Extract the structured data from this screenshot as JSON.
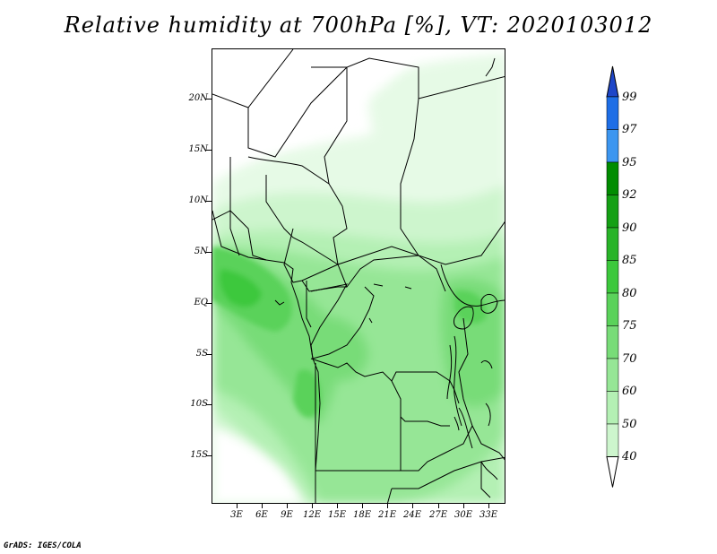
{
  "title": "Relative humidity at 700hPa [%], VT: 2020103012",
  "credit": "GrADS: IGES/COLA",
  "lat_labels": [
    "20N",
    "15N",
    "10N",
    "5N",
    "EQ",
    "5S",
    "10S",
    "15S"
  ],
  "lon_labels": [
    "3E",
    "6E",
    "9E",
    "12E",
    "15E",
    "18E",
    "21E",
    "24E",
    "27E",
    "30E",
    "33E"
  ],
  "colorbar": {
    "labels": [
      "99",
      "97",
      "95",
      "92",
      "90",
      "85",
      "80",
      "75",
      "70",
      "60",
      "50",
      "40"
    ],
    "colors": [
      "#e6fae6",
      "#cdf5cd",
      "#b4f0b4",
      "#96e696",
      "#78dc78",
      "#5ad25a",
      "#3cc83c",
      "#28b428",
      "#14a014",
      "#008c00",
      "#3c96f0",
      "#1e6ee6",
      "#1e46c8"
    ]
  },
  "field_colors": {
    "light": "#e6fae6",
    "mid1": "#cdf5cd",
    "mid2": "#b4f0b4",
    "mid3": "#96e696",
    "mid4": "#78dc78",
    "dark1": "#5ad25a",
    "dark2": "#3cc83c"
  }
}
